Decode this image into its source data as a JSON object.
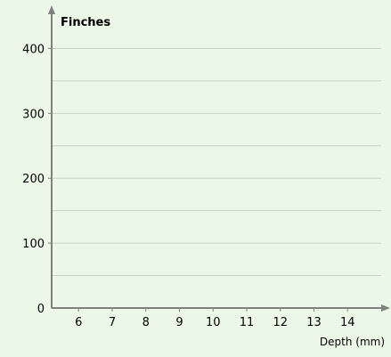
{
  "chart_data": {
    "type": "scatter",
    "title": "",
    "ylabel": "Finches",
    "xlabel": "Depth (mm)",
    "x_ticks": [
      "6",
      "7",
      "8",
      "9",
      "10",
      "11",
      "12",
      "13",
      "14"
    ],
    "y_ticks": [
      "0",
      "100",
      "200",
      "300",
      "400"
    ],
    "xlim": [
      5.2,
      15.0
    ],
    "ylim": [
      0,
      450
    ],
    "grid_minor_step": 50,
    "grid": true,
    "series": []
  },
  "colors": {
    "background": "#ebf8e8",
    "grid": "#c8d2c6",
    "axis": "#808080"
  }
}
